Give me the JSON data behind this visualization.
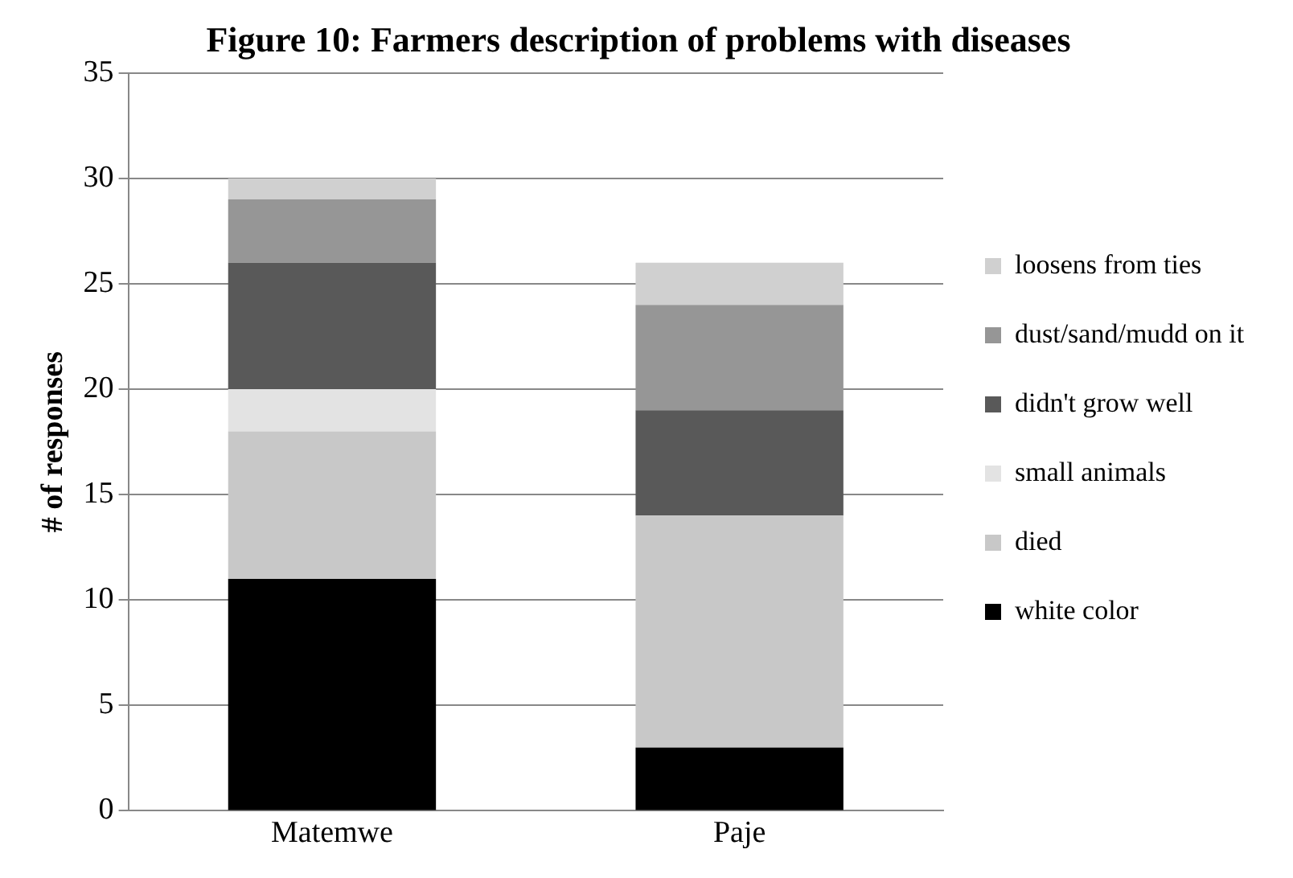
{
  "chart_data": {
    "type": "bar",
    "title": "Figure 10: Farmers description of problems with diseases",
    "ylabel": "# of responses",
    "categories": [
      "Matemwe",
      "Paje"
    ],
    "stacked": true,
    "ylim": [
      0,
      35
    ],
    "yticks": [
      0,
      5,
      10,
      15,
      20,
      25,
      30,
      35
    ],
    "grid": "y",
    "legend": "right",
    "series": [
      {
        "name": "white color",
        "color": "#000000",
        "values": [
          11,
          3
        ]
      },
      {
        "name": "died",
        "color": "#c8c8c8",
        "values": [
          7,
          11
        ]
      },
      {
        "name": "small animals",
        "color": "#e3e3e3",
        "values": [
          2,
          0
        ]
      },
      {
        "name": "didn't grow well",
        "color": "#595959",
        "values": [
          6,
          5
        ]
      },
      {
        "name": "dust/sand/mudd on it",
        "color": "#969696",
        "values": [
          3,
          5
        ]
      },
      {
        "name": "loosens from ties",
        "color": "#d0d0d0",
        "values": [
          1,
          2
        ]
      }
    ]
  }
}
